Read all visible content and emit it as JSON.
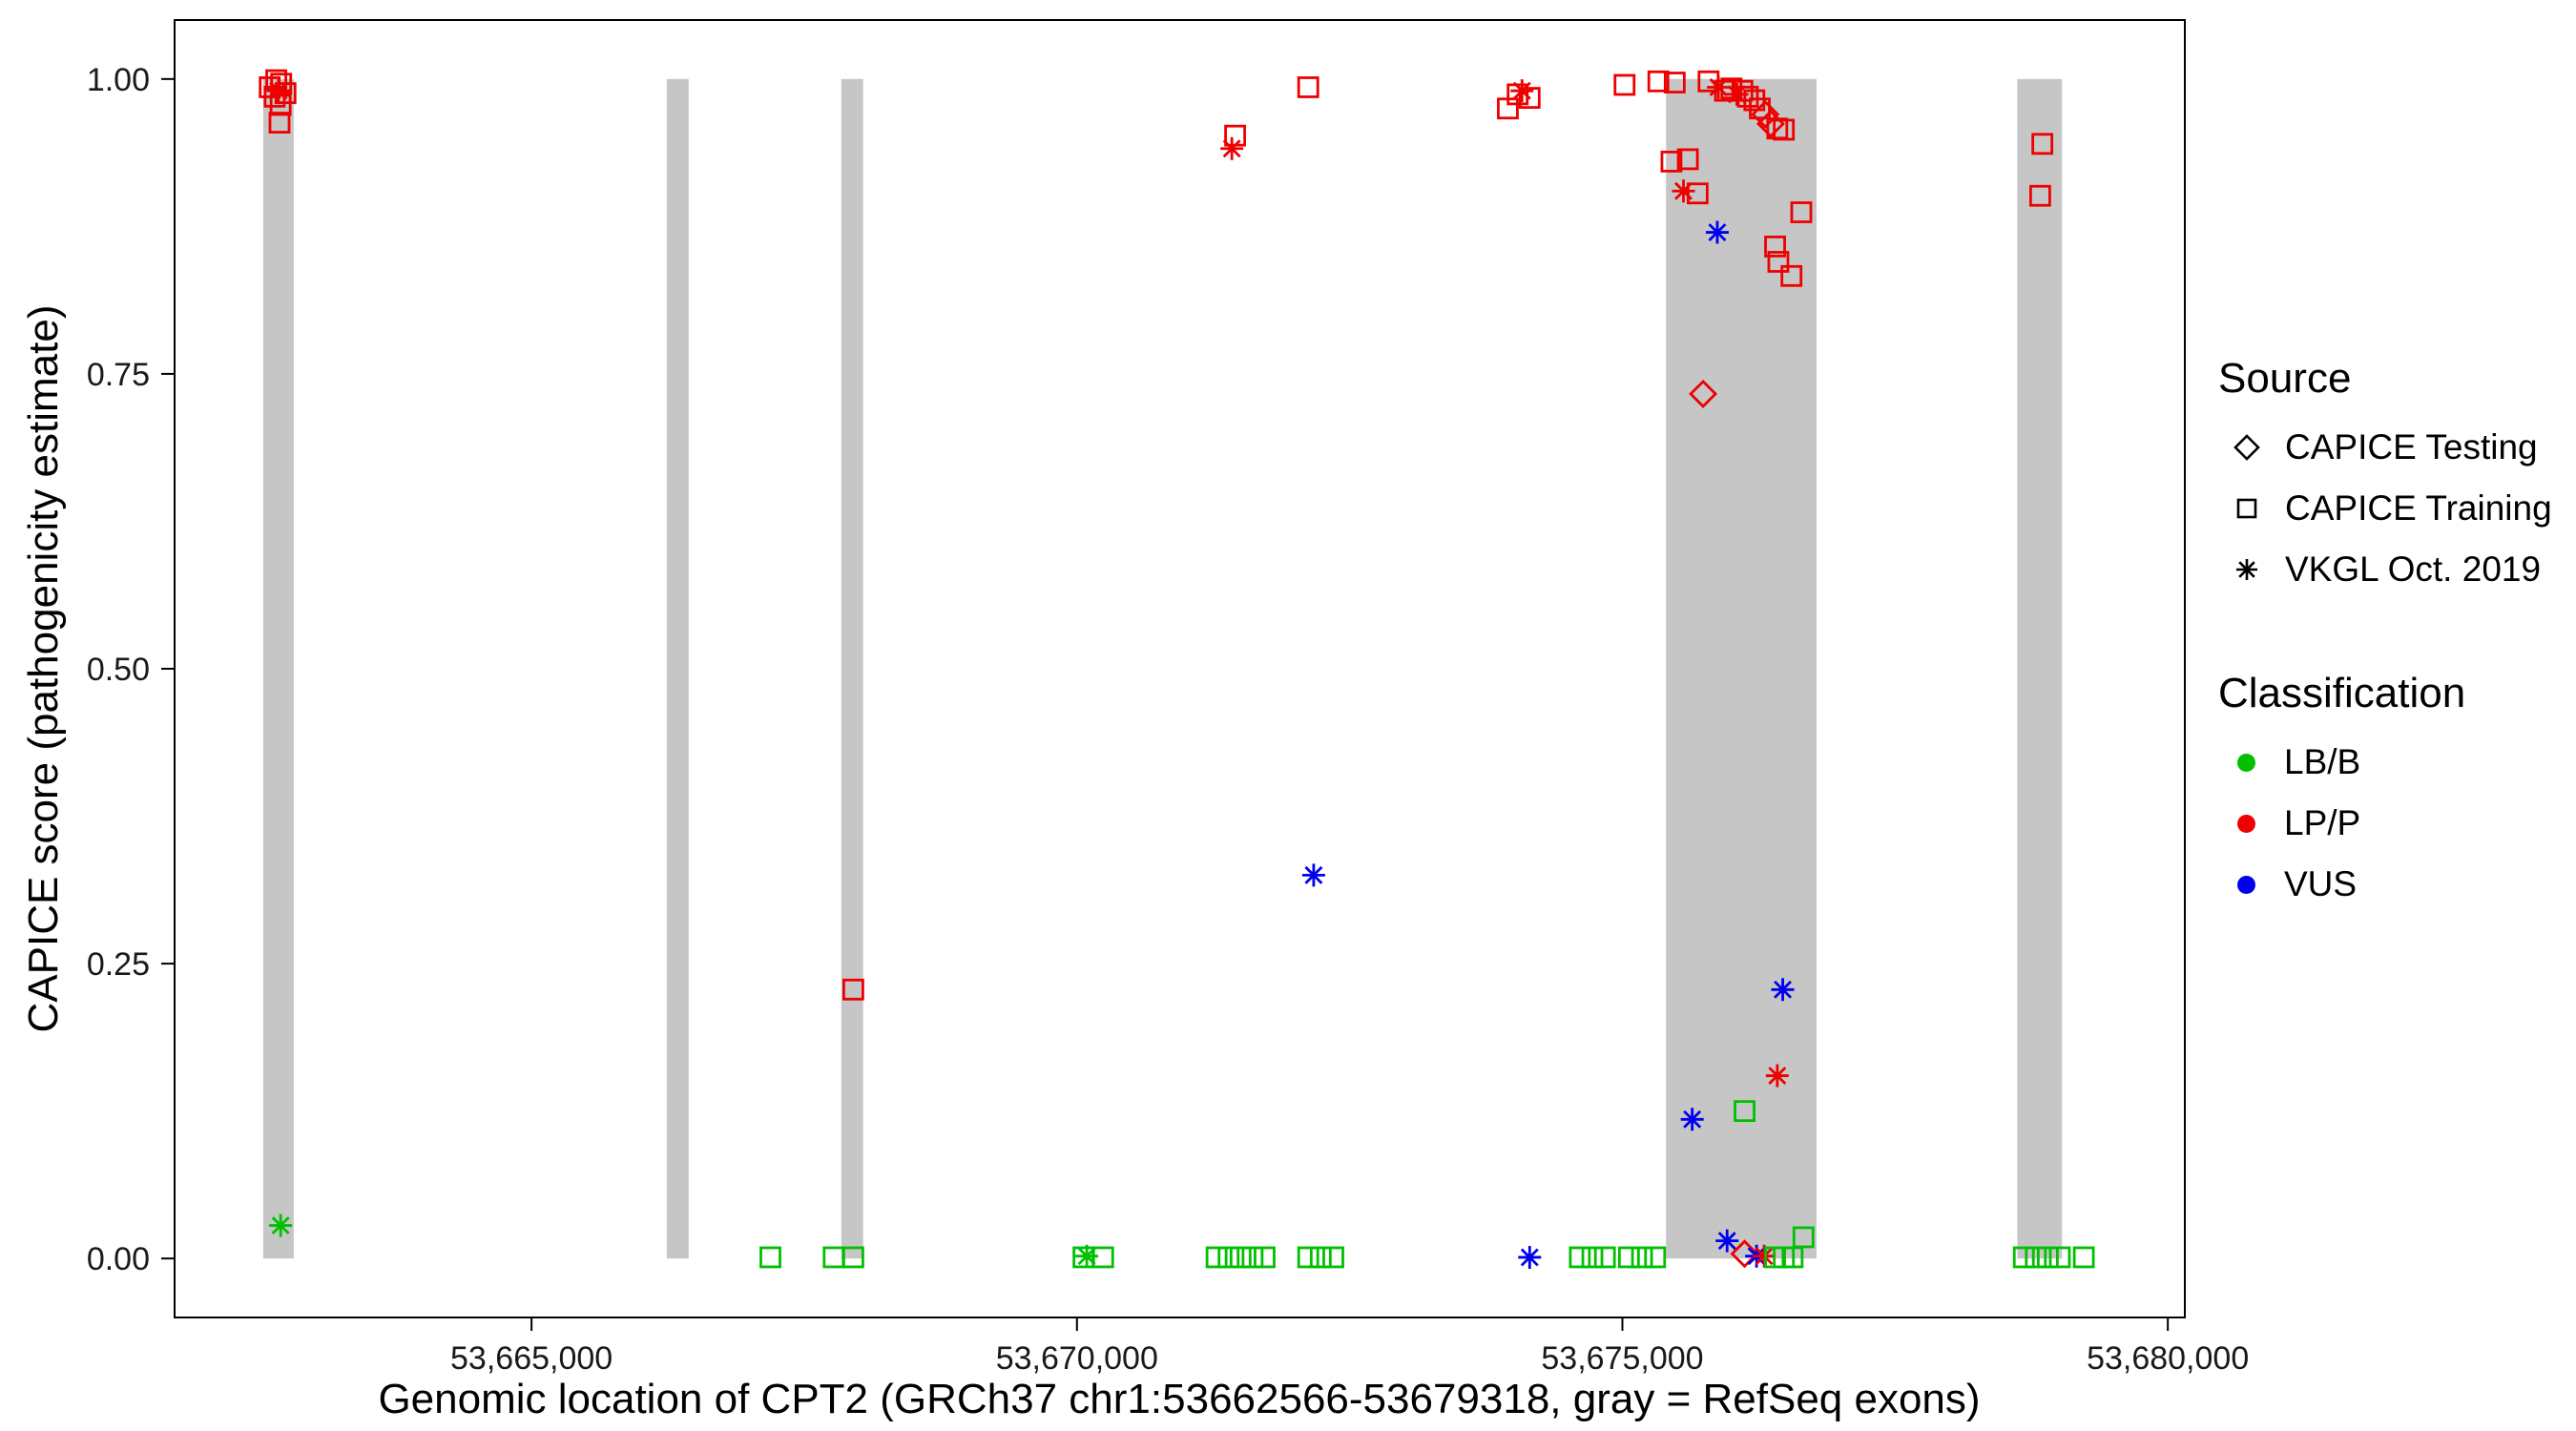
{
  "chart_data": {
    "type": "scatter",
    "title": "",
    "xlabel": "Genomic location of CPT2 (GRCh37 chr1:53662566-53679318, gray = RefSeq exons)",
    "ylabel": "CAPICE score (pathogenicity estimate)",
    "x_domain": [
      53661728,
      53680156
    ],
    "y_domain": [
      -0.05,
      1.05
    ],
    "x_ticks": [
      {
        "value": 53665000,
        "label": "53,665,000"
      },
      {
        "value": 53670000,
        "label": "53,670,000"
      },
      {
        "value": 53675000,
        "label": "53,675,000"
      },
      {
        "value": 53680000,
        "label": "53,680,000"
      }
    ],
    "y_ticks": [
      {
        "value": 0.0,
        "label": "0.00"
      },
      {
        "value": 0.25,
        "label": "0.25"
      },
      {
        "value": 0.5,
        "label": "0.50"
      },
      {
        "value": 0.75,
        "label": "0.75"
      },
      {
        "value": 1.0,
        "label": "1.00"
      }
    ],
    "grid": "off",
    "legend_position": "right",
    "exon_band_color": "#C6C6C6",
    "exons_note": "gray vertical bands = RefSeq exons, drawn from y=0 to y=1",
    "exons": [
      [
        53662540,
        53662820
      ],
      [
        53666240,
        53666440
      ],
      [
        53667840,
        53668040
      ],
      [
        53675400,
        53676780
      ],
      [
        53678620,
        53679030
      ]
    ],
    "classification_labels": {
      "LB": "LB/B",
      "LP": "LP/P",
      "VUS": "VUS"
    },
    "classification_colors": {
      "LB": "#00C000",
      "LP": "#EE0000",
      "VUS": "#0000EE"
    },
    "source_labels": {
      "test": "CAPICE Testing",
      "train": "CAPICE Training",
      "vkgl": "VKGL Oct. 2019"
    },
    "source_shapes": {
      "test": "diamond",
      "train": "square",
      "vkgl": "asterisk"
    },
    "point_fields": [
      "x",
      "y",
      "classification",
      "source"
    ],
    "points": [
      [
        53662600,
        0.993,
        "LP",
        "train"
      ],
      [
        53662660,
        0.999,
        "LP",
        "train"
      ],
      [
        53662705,
        0.996,
        "LP",
        "train"
      ],
      [
        53662645,
        0.985,
        "LP",
        "train"
      ],
      [
        53662700,
        0.978,
        "LP",
        "train"
      ],
      [
        53662680,
        0.99,
        "LP",
        "vkgl"
      ],
      [
        53662745,
        0.988,
        "LP",
        "train"
      ],
      [
        53662690,
        0.963,
        "LP",
        "train"
      ],
      [
        53662700,
        0.028,
        "LB",
        "vkgl"
      ],
      [
        53667190,
        0.001,
        "LB",
        "train"
      ],
      [
        53667770,
        0.001,
        "LB",
        "train"
      ],
      [
        53667950,
        0.001,
        "LB",
        "train"
      ],
      [
        53667950,
        0.228,
        "LP",
        "train"
      ],
      [
        53670060,
        0.001,
        "LB",
        "train"
      ],
      [
        53670090,
        0.002,
        "LB",
        "vkgl"
      ],
      [
        53670240,
        0.001,
        "LB",
        "train"
      ],
      [
        53671280,
        0.001,
        "LB",
        "train"
      ],
      [
        53671390,
        0.001,
        "LB",
        "train"
      ],
      [
        53671500,
        0.001,
        "LB",
        "train"
      ],
      [
        53671610,
        0.001,
        "LB",
        "train"
      ],
      [
        53671720,
        0.001,
        "LB",
        "train"
      ],
      [
        53671450,
        0.952,
        "LP",
        "train"
      ],
      [
        53671420,
        0.941,
        "LP",
        "vkgl"
      ],
      [
        53672120,
        0.001,
        "LB",
        "train"
      ],
      [
        53672235,
        0.001,
        "LB",
        "train"
      ],
      [
        53672350,
        0.001,
        "LB",
        "train"
      ],
      [
        53672120,
        0.993,
        "LP",
        "train"
      ],
      [
        53672170,
        0.325,
        "VUS",
        "vkgl"
      ],
      [
        53673950,
        0.975,
        "LP",
        "train"
      ],
      [
        53674040,
        0.987,
        "LP",
        "train"
      ],
      [
        53674080,
        0.99,
        "LP",
        "vkgl"
      ],
      [
        53674150,
        0.984,
        "LP",
        "train"
      ],
      [
        53674150,
        0.001,
        "VUS",
        "vkgl"
      ],
      [
        53674610,
        0.001,
        "LB",
        "train"
      ],
      [
        53674725,
        0.001,
        "LB",
        "train"
      ],
      [
        53674840,
        0.001,
        "LB",
        "train"
      ],
      [
        53675020,
        0.995,
        "LP",
        "train"
      ],
      [
        53675060,
        0.001,
        "LB",
        "train"
      ],
      [
        53675180,
        0.001,
        "LB",
        "train"
      ],
      [
        53675300,
        0.001,
        "LB",
        "train"
      ],
      [
        53675330,
        0.998,
        "LP",
        "train"
      ],
      [
        53675480,
        0.997,
        "LP",
        "train"
      ],
      [
        53675790,
        0.998,
        "LP",
        "train"
      ],
      [
        53675880,
        0.993,
        "LP",
        "vkgl"
      ],
      [
        53675940,
        0.99,
        "LP",
        "train"
      ],
      [
        53676000,
        0.992,
        "LP",
        "train"
      ],
      [
        53676050,
        0.987,
        "LP",
        "vkgl"
      ],
      [
        53676100,
        0.99,
        "LP",
        "train"
      ],
      [
        53676150,
        0.985,
        "LP",
        "train"
      ],
      [
        53676210,
        0.982,
        "LP",
        "train"
      ],
      [
        53676260,
        0.975,
        "LP",
        "train"
      ],
      [
        53676310,
        0.97,
        "LP",
        "test"
      ],
      [
        53676360,
        0.962,
        "LP",
        "test"
      ],
      [
        53676420,
        0.958,
        "LP",
        "train"
      ],
      [
        53676480,
        0.957,
        "LP",
        "train"
      ],
      [
        53675450,
        0.93,
        "LP",
        "train"
      ],
      [
        53675600,
        0.932,
        "LP",
        "train"
      ],
      [
        53675560,
        0.905,
        "LP",
        "vkgl"
      ],
      [
        53675690,
        0.903,
        "LP",
        "train"
      ],
      [
        53675870,
        0.87,
        "VUS",
        "vkgl"
      ],
      [
        53676640,
        0.887,
        "LP",
        "train"
      ],
      [
        53676400,
        0.858,
        "LP",
        "train"
      ],
      [
        53676430,
        0.845,
        "LP",
        "train"
      ],
      [
        53676550,
        0.833,
        "LP",
        "train"
      ],
      [
        53675740,
        0.733,
        "LP",
        "test"
      ],
      [
        53676470,
        0.228,
        "VUS",
        "vkgl"
      ],
      [
        53676420,
        0.155,
        "LP",
        "vkgl"
      ],
      [
        53675640,
        0.118,
        "VUS",
        "vkgl"
      ],
      [
        53676120,
        0.125,
        "LB",
        "train"
      ],
      [
        53675960,
        0.015,
        "VUS",
        "vkgl"
      ],
      [
        53676120,
        0.004,
        "LP",
        "test"
      ],
      [
        53676230,
        0.002,
        "VUS",
        "vkgl"
      ],
      [
        53676300,
        0.002,
        "LP",
        "vkgl"
      ],
      [
        53676400,
        0.001,
        "LB",
        "train"
      ],
      [
        53676480,
        0.001,
        "LB",
        "train"
      ],
      [
        53676560,
        0.001,
        "LB",
        "train"
      ],
      [
        53676660,
        0.018,
        "LB",
        "train"
      ],
      [
        53678850,
        0.945,
        "LP",
        "train"
      ],
      [
        53678830,
        0.901,
        "LP",
        "train"
      ],
      [
        53678680,
        0.001,
        "LB",
        "train"
      ],
      [
        53678790,
        0.001,
        "LB",
        "train"
      ],
      [
        53678900,
        0.001,
        "LB",
        "train"
      ],
      [
        53679010,
        0.001,
        "LB",
        "train"
      ],
      [
        53679230,
        0.001,
        "LB",
        "train"
      ]
    ]
  },
  "legend": {
    "source": {
      "title": "Source",
      "items": [
        {
          "label": "CAPICE Testing",
          "shape": "diamond"
        },
        {
          "label": "CAPICE Training",
          "shape": "square"
        },
        {
          "label": "VKGL Oct. 2019",
          "shape": "asterisk"
        }
      ]
    },
    "classification": {
      "title": "Classification",
      "items": [
        {
          "label": "LB/B",
          "color": "#00C000"
        },
        {
          "label": "LP/P",
          "color": "#EE0000"
        },
        {
          "label": "VUS",
          "color": "#0000EE"
        }
      ]
    }
  }
}
